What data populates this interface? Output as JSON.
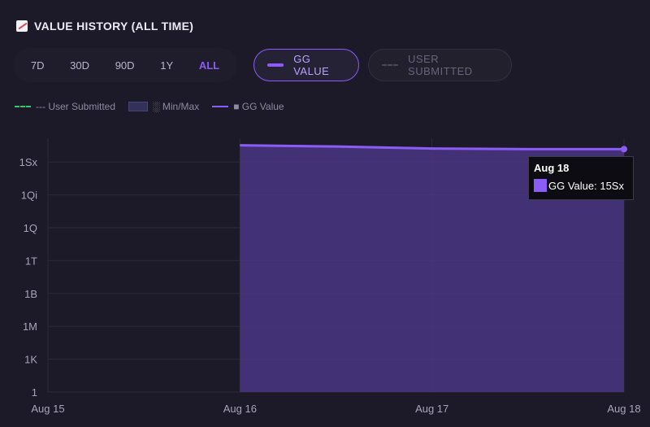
{
  "header": {
    "title": "VALUE HISTORY (ALL TIME)",
    "icon": "chart-increasing-icon"
  },
  "ranges": [
    {
      "label": "7D",
      "active": false
    },
    {
      "label": "30D",
      "active": false
    },
    {
      "label": "90D",
      "active": false
    },
    {
      "label": "1Y",
      "active": false
    },
    {
      "label": "ALL",
      "active": true
    }
  ],
  "toggles": {
    "gg_value": "GG VALUE",
    "user_submitted": "USER SUBMITTED"
  },
  "legend": {
    "user_submitted": "--- User Submitted",
    "min_max": "░ Min/Max",
    "gg_value": "■ GG Value"
  },
  "colors": {
    "accent": "#8b5cf6",
    "user_submitted": "#2ecc71",
    "minmax_fill": "#35305a"
  },
  "tooltip": {
    "date": "Aug 18",
    "label": "GG Value: 15Sx"
  },
  "chart_data": {
    "type": "area",
    "yscale": "log",
    "x": [
      "Aug 15",
      "Aug 16",
      "Aug 17",
      "Aug 18"
    ],
    "y_ticks": [
      "1",
      "1K",
      "1M",
      "1B",
      "1T",
      "1Q",
      "1Qi",
      "1Sx"
    ],
    "ylim": [
      "1",
      "100Sx"
    ],
    "series": [
      {
        "name": "GG Value",
        "points": [
          {
            "x": "Aug 16",
            "y": 3.4e+22
          },
          {
            "x": "Aug 16.5",
            "y": 2.6e+22
          },
          {
            "x": "Aug 17",
            "y": 1.7e+22
          },
          {
            "x": "Aug 17.5",
            "y": 1.5e+22
          },
          {
            "x": "Aug 18",
            "y": 1.5e+22
          }
        ]
      }
    ],
    "grid": true
  }
}
